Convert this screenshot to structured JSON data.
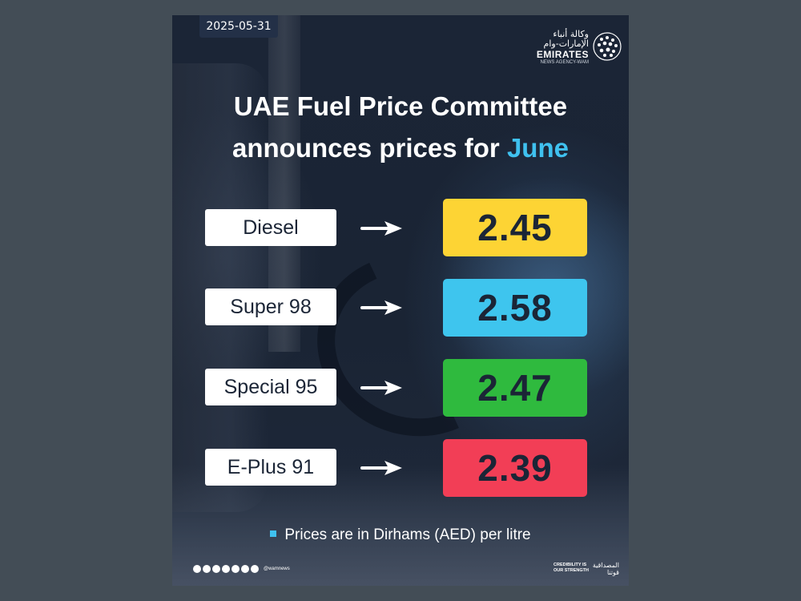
{
  "date": "2025-05-31",
  "logo": {
    "arabic": "وكالة أنباء الإمارات-وام",
    "english": "EMIRATES",
    "sub": "NEWS AGENCY-WAM"
  },
  "headline": {
    "line1": "UAE Fuel Price Committee",
    "line2_prefix": "announces prices for ",
    "line2_accent": "June"
  },
  "fuels": [
    {
      "label": "Diesel",
      "price": "2.45",
      "color": "#fdd434"
    },
    {
      "label": "Super 98",
      "price": "2.58",
      "color": "#3ec5ee"
    },
    {
      "label": "Special 95",
      "price": "2.47",
      "color": "#2fba3e"
    },
    {
      "label": "E-Plus 91",
      "price": "2.39",
      "color": "#f23e56"
    }
  ],
  "note": "Prices are in Dirhams (AED) per litre",
  "footer": {
    "handle": "@wamnews",
    "slogan_en": "CREDIBILITY IS OUR STRENGTH",
    "slogan_ar": "المصداقية قوتنا"
  },
  "colors": {
    "accent": "#3fc1ef",
    "background": "#1b2536",
    "page": "#434d56"
  }
}
